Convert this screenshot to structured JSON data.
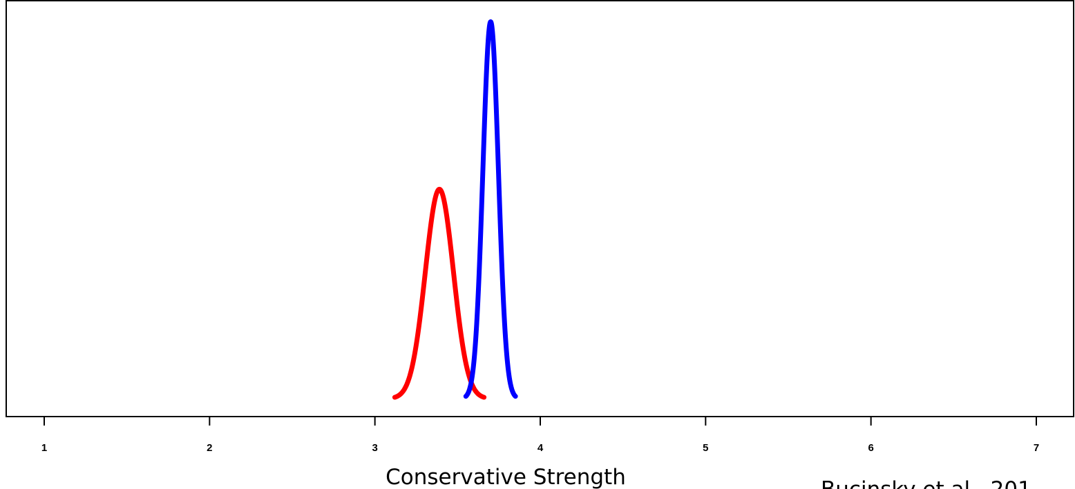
{
  "chart_data": {
    "type": "line",
    "xlabel": "Conservative Strength",
    "ylabel": "",
    "xlim": [
      0.77,
      7.2
    ],
    "ylim": [
      0,
      1
    ],
    "x_ticks": [
      1,
      2,
      3,
      4,
      5,
      6,
      7
    ],
    "x_tick_labels": [
      "1",
      "2",
      "3",
      "4",
      "5",
      "6",
      "7"
    ],
    "grid": false,
    "series": [
      {
        "color": "#ff0000",
        "distribution": "normal",
        "mean": 3.39,
        "sd": 0.085,
        "x_range": [
          3.12,
          3.66
        ],
        "peak": 0.55
      },
      {
        "color": "#0000ff",
        "distribution": "normal",
        "mean": 3.7,
        "sd": 0.047,
        "x_range": [
          3.55,
          3.85
        ],
        "peak": 0.99
      }
    ],
    "source_note": "Bucinsky et al., 201"
  }
}
